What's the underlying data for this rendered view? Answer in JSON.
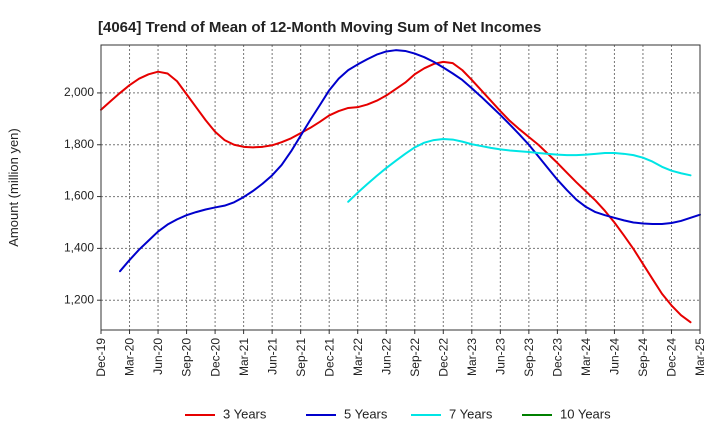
{
  "chart_data": {
    "type": "line",
    "title": "[4064]  Trend of Mean of 12-Month Moving Sum of Net Incomes",
    "ylabel": "Amount (million yen)",
    "xlabel": "",
    "x_ticks": [
      "Dec-19",
      "Mar-20",
      "Jun-20",
      "Sep-20",
      "Dec-20",
      "Mar-21",
      "Jun-21",
      "Sep-21",
      "Dec-21",
      "Mar-22",
      "Jun-22",
      "Sep-22",
      "Dec-22",
      "Mar-23",
      "Jun-23",
      "Sep-23",
      "Dec-23",
      "Mar-24",
      "Jun-24",
      "Sep-24",
      "Dec-24",
      "Mar-25"
    ],
    "y_ticks": [
      1200,
      1400,
      1600,
      1800,
      2000
    ],
    "ylim": [
      1085,
      2185
    ],
    "grid": true,
    "legend_position": "bottom",
    "x_start": "2019-12",
    "series": [
      {
        "name": "3 Years",
        "color": "#e60000",
        "start": "2019-12",
        "values": [
          1935,
          1968,
          2000,
          2030,
          2055,
          2072,
          2082,
          2075,
          2045,
          1995,
          1945,
          1895,
          1850,
          1818,
          1800,
          1792,
          1790,
          1792,
          1798,
          1810,
          1825,
          1845,
          1865,
          1888,
          1913,
          1930,
          1942,
          1945,
          1955,
          1970,
          1990,
          2015,
          2040,
          2072,
          2095,
          2112,
          2120,
          2115,
          2088,
          2050,
          2010,
          1970,
          1930,
          1892,
          1860,
          1830,
          1800,
          1765,
          1730,
          1692,
          1655,
          1620,
          1585,
          1545,
          1500,
          1450,
          1398,
          1340,
          1282,
          1225,
          1180,
          1142,
          1115
        ]
      },
      {
        "name": "5 Years",
        "color": "#0000cc",
        "start": "2020-02",
        "values": [
          1312,
          1355,
          1395,
          1430,
          1465,
          1492,
          1512,
          1528,
          1540,
          1550,
          1558,
          1565,
          1578,
          1598,
          1622,
          1650,
          1682,
          1722,
          1775,
          1835,
          1895,
          1952,
          2010,
          2055,
          2088,
          2110,
          2130,
          2148,
          2160,
          2165,
          2162,
          2152,
          2138,
          2120,
          2098,
          2075,
          2050,
          2018,
          1985,
          1950,
          1915,
          1878,
          1840,
          1800,
          1755,
          1710,
          1665,
          1625,
          1588,
          1560,
          1540,
          1528,
          1518,
          1508,
          1500,
          1496,
          1494,
          1494,
          1498,
          1506,
          1518,
          1530
        ]
      },
      {
        "name": "7 Years",
        "color": "#00e5e5",
        "start": "2022-02",
        "values": [
          1580,
          1615,
          1648,
          1680,
          1710,
          1738,
          1765,
          1790,
          1808,
          1818,
          1822,
          1820,
          1812,
          1802,
          1795,
          1788,
          1782,
          1778,
          1775,
          1772,
          1768,
          1765,
          1762,
          1760,
          1760,
          1762,
          1765,
          1768,
          1768,
          1765,
          1760,
          1750,
          1735,
          1715,
          1700,
          1690,
          1682
        ]
      },
      {
        "name": "10 Years",
        "color": "#008000",
        "start": "2024-12",
        "values": []
      }
    ]
  }
}
